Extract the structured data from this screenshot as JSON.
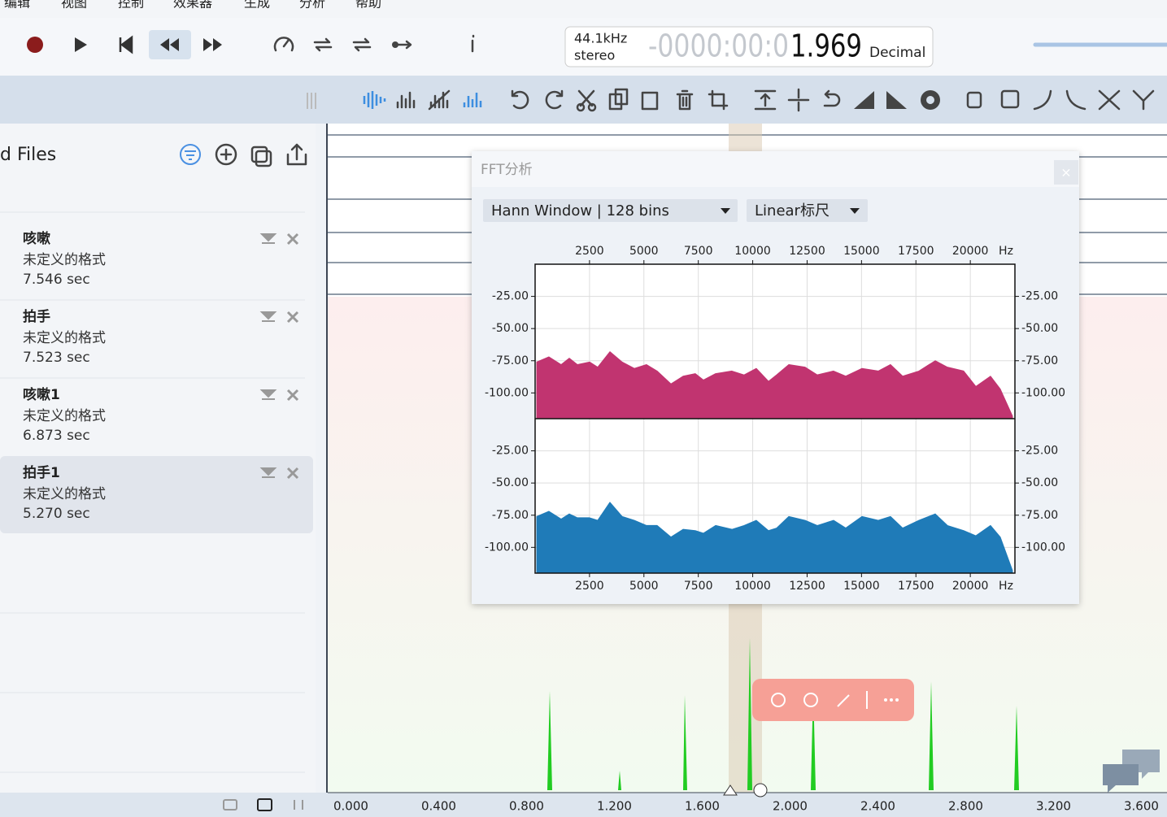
{
  "menu": [
    "编辑",
    "视图",
    "控制",
    "效果器",
    "生成",
    "分析",
    "帮助"
  ],
  "transport": {
    "sample_rate": "44.1kHz",
    "channels": "stereo",
    "time_prefix": "-0000:00:0",
    "time": "1.969",
    "time_format": "Decimal"
  },
  "files_panel": {
    "title": "d Files",
    "files": [
      {
        "name": "咳嗽",
        "format": "未定义的格式",
        "duration": "7.546 sec"
      },
      {
        "name": "拍手",
        "format": "未定义的格式",
        "duration": "7.523 sec"
      },
      {
        "name": "咳嗽1",
        "format": "未定义的格式",
        "duration": "6.873 sec"
      },
      {
        "name": "拍手1",
        "format": "未定义的格式",
        "duration": "5.270 sec"
      }
    ]
  },
  "fft_dialog": {
    "title": "FFT分析",
    "close": "×",
    "window_select": "Hann Window | 128 bins",
    "scale_select": "Linear标尺"
  },
  "chart_data": {
    "type": "area",
    "x_unit": "Hz",
    "x": [
      75,
      635,
      1196,
      1570,
      1943,
      2504,
      2877,
      3438,
      3999,
      4559,
      5120,
      5606,
      6241,
      6801,
      7362,
      7736,
      8296,
      9044,
      9604,
      10165,
      10725,
      11099,
      11659,
      12407,
      12967,
      13715,
      14275,
      15023,
      15770,
      16331,
      16891,
      17639,
      18386,
      18947,
      19694,
      20255,
      20928,
      21376,
      21937
    ],
    "series": [
      {
        "color": "#c13470",
        "values": [
          -76,
          -72,
          -78,
          -73,
          -78,
          -76,
          -80,
          -68,
          -76,
          -81,
          -78,
          -83,
          -93,
          -87,
          -85,
          -90,
          -85,
          -83,
          -86,
          -81,
          -91,
          -86,
          -78,
          -80,
          -86,
          -83,
          -87,
          -81,
          -83,
          -78,
          -87,
          -83,
          -75,
          -80,
          -83,
          -95,
          -87,
          -97,
          -118
        ]
      },
      {
        "color": "#1f7bb8",
        "values": [
          -76,
          -72,
          -78,
          -74,
          -77,
          -77,
          -79,
          -65,
          -76,
          -79,
          -83,
          -83,
          -92,
          -86,
          -87,
          -89,
          -83,
          -86,
          -83,
          -79,
          -87,
          -85,
          -76,
          -79,
          -83,
          -79,
          -85,
          -76,
          -79,
          -76,
          -85,
          -79,
          -74,
          -83,
          -87,
          -91,
          -83,
          -92,
          -118
        ]
      }
    ],
    "xlim": [
      0,
      22050
    ],
    "xticks": [
      2500,
      5000,
      7500,
      10000,
      12500,
      15000,
      17500,
      20000
    ],
    "ylim": [
      -120,
      0
    ],
    "yticks": [
      {
        "value": -25,
        "label": "-25.00"
      },
      {
        "value": -50,
        "label": "-50.00"
      },
      {
        "value": -75,
        "label": "-75.00"
      },
      {
        "value": -100,
        "label": "-100.00"
      }
    ],
    "grid": true
  },
  "timeline": {
    "ticks": [
      "0.000",
      "0.400",
      "0.800",
      "1.200",
      "1.600",
      "2.000",
      "2.400",
      "2.800",
      "3.200",
      "3.600"
    ]
  }
}
